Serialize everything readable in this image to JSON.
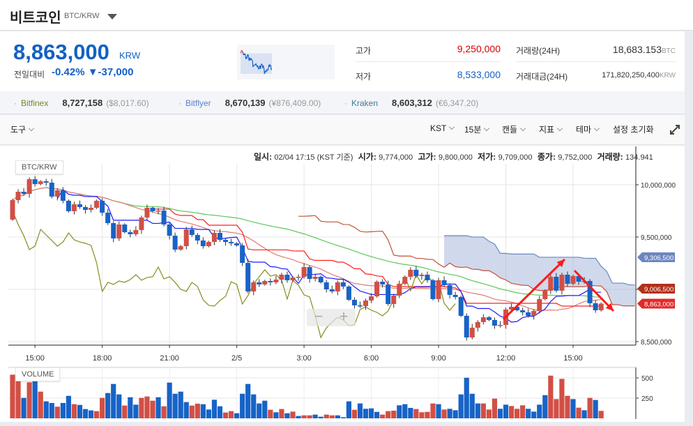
{
  "header": {
    "title": "비트코인",
    "pair": "BTC/KRW"
  },
  "ticker": {
    "price": "8,863,000",
    "unit": "KRW",
    "change_label": "전일대비",
    "change_pct": "-0.42%",
    "change_amt": "▼-37,000",
    "high_label": "고가",
    "high": "9,250,000",
    "low_label": "저가",
    "low": "8,533,000",
    "volume_label": "거래량(24H)",
    "volume": "18,683.153",
    "volume_unit": "BTC",
    "value_label": "거래대금(24H)",
    "value": "171,820,250,400",
    "value_unit": "KRW"
  },
  "exchanges": [
    {
      "name": "Bitfinex",
      "price": "8,727,158",
      "fx": "($8,017.60)",
      "color": "#6d8a2a"
    },
    {
      "name": "Bitflyer",
      "price": "8,670,139",
      "fx": "(¥876,409.00)",
      "color": "#5a7fc8"
    },
    {
      "name": "Kraken",
      "price": "8,603,312",
      "fx": "(€6,347.20)",
      "color": "#3a7aa0"
    }
  ],
  "toolbar": {
    "tools": "도구",
    "timezone": "KST",
    "interval": "15분",
    "chart_type": "캔들",
    "indicators": "지표",
    "theme": "테마",
    "reset": "설정 초기화"
  },
  "info": {
    "time_label": "일시:",
    "time": "02/04 17:15 (KST 기준)",
    "open_label": "시가:",
    "open": "9,774,000",
    "high_label": "고가:",
    "high": "9,800,000",
    "low_label": "저가:",
    "low": "9,709,000",
    "close_label": "종가:",
    "close": "9,752,000",
    "vol_label": "거래량:",
    "vol": "134.941"
  },
  "chart_labels": {
    "price_panel": "BTC/KRW",
    "volume_panel": "VOLUME",
    "zoom_out": "−",
    "zoom_in": "+"
  },
  "colors": {
    "up": "#d24f45",
    "down": "#1763c7",
    "accent_blue": "#1261c4",
    "high_red": "#d60000"
  },
  "chart_data": {
    "type": "candlestick",
    "interval": "15분",
    "x_ticks": [
      "15:00",
      "18:00",
      "21:00",
      "2/5",
      "3:00",
      "6:00",
      "9:00",
      "12:00",
      "15:00"
    ],
    "y_ticks": [
      10000000,
      9500000,
      9000000,
      8500000
    ],
    "y_tick_labels": [
      "10,000,000",
      "9,500,000",
      "",
      "8,500,000"
    ],
    "ylim": [
      8450000,
      10200000
    ],
    "price_tags": [
      {
        "label": "9,306,500",
        "value": 9306500,
        "color": "#6b86c0"
      },
      {
        "label": "9,006,500",
        "value": 9006500,
        "color": "#b1301a"
      },
      {
        "label": "8,863,000",
        "value": 8863000,
        "color": "#e02a2a"
      }
    ],
    "first_open": 9667000,
    "close": [
      9853000,
      9933000,
      9913000,
      10053000,
      10007000,
      10033000,
      10020000,
      9887000,
      9947000,
      9847000,
      9747000,
      9813000,
      9787000,
      9760000,
      9780000,
      9847000,
      9733000,
      9633000,
      9487000,
      9620000,
      9547000,
      9527000,
      9567000,
      9687000,
      9780000,
      9747000,
      9753000,
      9620000,
      9513000,
      9380000,
      9413000,
      9573000,
      9520000,
      9467000,
      9413000,
      9453000,
      9540000,
      9473000,
      9453000,
      9440000,
      9420000,
      9253000,
      8980000,
      9067000,
      9047000,
      9080000,
      9067000,
      9093000,
      9140000,
      9087000,
      9113000,
      9120000,
      9213000,
      9100000,
      9120000,
      9067000,
      9000000,
      8980000,
      9067000,
      9027000,
      8900000,
      8847000,
      8840000,
      8893000,
      8933000,
      9073000,
      9047000,
      8860000,
      8940000,
      9053000,
      9120000,
      9187000,
      9127000,
      9140000,
      9087000,
      8907000,
      9087000,
      9040000,
      8947000,
      8927000,
      8747000,
      8540000,
      8633000,
      8687000,
      8733000,
      8707000,
      8653000,
      8660000,
      8807000,
      8833000,
      8800000,
      8780000,
      8747000,
      8793000,
      8907000,
      8987000,
      9120000,
      8987000,
      9140000,
      9053000,
      9127000,
      9073000,
      9080000,
      8867000,
      8800000,
      8863000
    ],
    "volume_ticks": [
      500,
      250
    ],
    "volume": [
      540,
      626,
      253,
      445,
      588,
      330,
      210,
      190,
      144,
      190,
      278,
      175,
      166,
      115,
      98,
      89,
      253,
      313,
      425,
      296,
      158,
      261,
      169,
      253,
      270,
      218,
      261,
      149,
      442,
      304,
      330,
      201,
      158,
      181,
      175,
      109,
      230,
      149,
      72,
      89,
      63,
      304,
      425,
      296,
      184,
      218,
      106,
      75,
      115,
      63,
      83,
      29,
      37,
      37,
      46,
      20,
      46,
      37,
      37,
      14,
      210,
      106,
      184,
      118,
      123,
      80,
      46,
      89,
      95,
      161,
      175,
      129,
      115,
      75,
      80,
      184,
      175,
      109,
      118,
      100,
      296,
      502,
      304,
      184,
      184,
      109,
      244,
      118,
      169,
      152,
      118,
      161,
      118,
      83,
      169,
      287,
      528,
      238,
      488,
      278,
      238,
      132,
      100,
      253,
      227,
      92
    ],
    "volume_dir": "uudududdudduddduudddudduuududddduudddduuddddddudududuudduudddudddduuuddduuuududddddduuudduuudddduuuudududud",
    "indicators": [
      "ichimoku",
      "moving-average"
    ],
    "annotations": [
      {
        "type": "arrow",
        "direction": "up",
        "color": "#ff1a1a"
      },
      {
        "type": "arrow",
        "direction": "down",
        "color": "#ff1a1a"
      }
    ]
  }
}
